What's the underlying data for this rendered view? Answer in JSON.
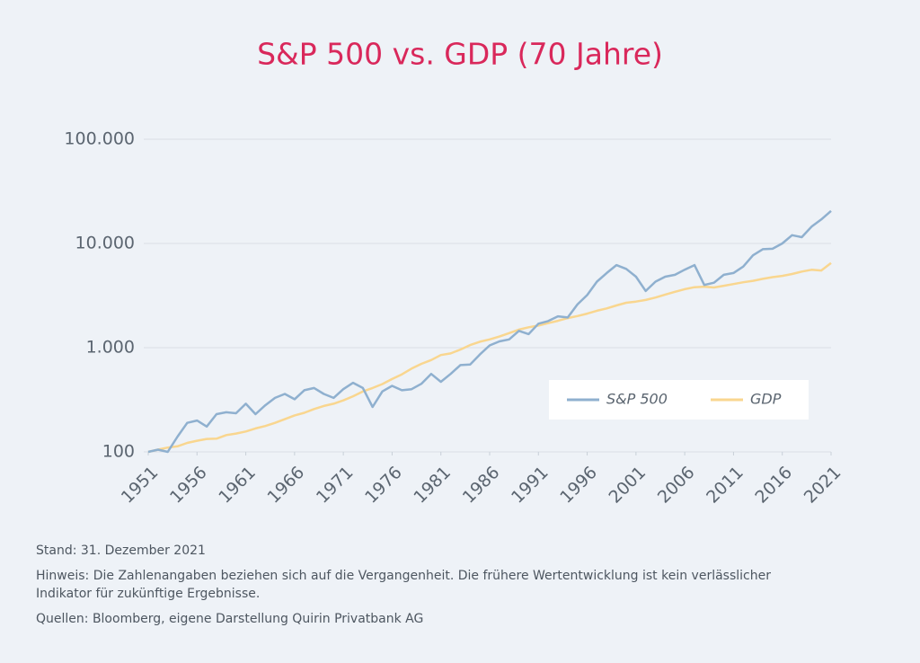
{
  "chart_data": {
    "type": "line",
    "title": "S&P 500 vs. GDP (70 Jahre)",
    "x": [
      1951,
      1952,
      1953,
      1954,
      1955,
      1956,
      1957,
      1958,
      1959,
      1960,
      1961,
      1962,
      1963,
      1964,
      1965,
      1966,
      1967,
      1968,
      1969,
      1970,
      1971,
      1972,
      1973,
      1974,
      1975,
      1976,
      1977,
      1978,
      1979,
      1980,
      1981,
      1982,
      1983,
      1984,
      1985,
      1986,
      1987,
      1988,
      1989,
      1990,
      1991,
      1992,
      1993,
      1994,
      1995,
      1996,
      1997,
      1998,
      1999,
      2000,
      2001,
      2002,
      2003,
      2004,
      2005,
      2006,
      2007,
      2008,
      2009,
      2010,
      2011,
      2012,
      2013,
      2014,
      2015,
      2016,
      2017,
      2018,
      2019,
      2020,
      2021
    ],
    "series": [
      {
        "name": "S&P 500",
        "color": "#8fb0cf",
        "values": [
          100,
          105,
          100,
          140,
          190,
          200,
          175,
          230,
          240,
          235,
          290,
          230,
          280,
          330,
          360,
          320,
          390,
          410,
          360,
          330,
          400,
          460,
          410,
          270,
          380,
          430,
          390,
          400,
          450,
          560,
          470,
          560,
          680,
          690,
          860,
          1050,
          1150,
          1200,
          1450,
          1350,
          1700,
          1800,
          2000,
          1950,
          2600,
          3200,
          4300,
          5200,
          6200,
          5700,
          4800,
          3500,
          4300,
          4800,
          5000,
          5600,
          6200,
          4000,
          4200,
          5000,
          5200,
          6000,
          7700,
          8800,
          8900,
          10000,
          12000,
          11500,
          14500,
          17000,
          20500
        ]
      },
      {
        "name": "GDP",
        "color": "#f9d68f",
        "values": [
          100,
          105,
          110,
          113,
          122,
          128,
          133,
          134,
          145,
          150,
          157,
          168,
          177,
          190,
          206,
          224,
          237,
          258,
          276,
          290,
          312,
          342,
          380,
          410,
          448,
          500,
          555,
          630,
          700,
          760,
          850,
          880,
          960,
          1060,
          1140,
          1200,
          1280,
          1380,
          1490,
          1570,
          1630,
          1720,
          1810,
          1920,
          2010,
          2120,
          2260,
          2380,
          2540,
          2700,
          2770,
          2870,
          3030,
          3230,
          3440,
          3640,
          3800,
          3850,
          3780,
          3930,
          4080,
          4240,
          4380,
          4570,
          4750,
          4880,
          5090,
          5370,
          5590,
          5500,
          6500
        ]
      }
    ],
    "xlim": [
      1951,
      2021
    ],
    "xticks": [
      1951,
      1956,
      1961,
      1966,
      1971,
      1976,
      1981,
      1986,
      1991,
      1996,
      2001,
      2006,
      2011,
      2016,
      2021
    ],
    "ylim": [
      100,
      100000
    ],
    "log_scale": true,
    "grid": true,
    "yticks": [
      100,
      {
        "value": 1000,
        "label": "1.000"
      },
      {
        "value": 10000,
        "label": "10.000"
      },
      {
        "value": 100000,
        "label": "100.000"
      }
    ],
    "legend": "lower right",
    "notes": [
      "Stand: 31. Dezember 2021",
      "Hinweis: Die Zahlenangaben beziehen sich auf die Vergangenheit. Die frühere Wertentwicklung ist kein verlässlicher",
      "Indikator für zukünftige Ergebnisse.",
      "Quellen: Bloomberg, eigene Darstellung Quirin Privatbank AG"
    ]
  }
}
